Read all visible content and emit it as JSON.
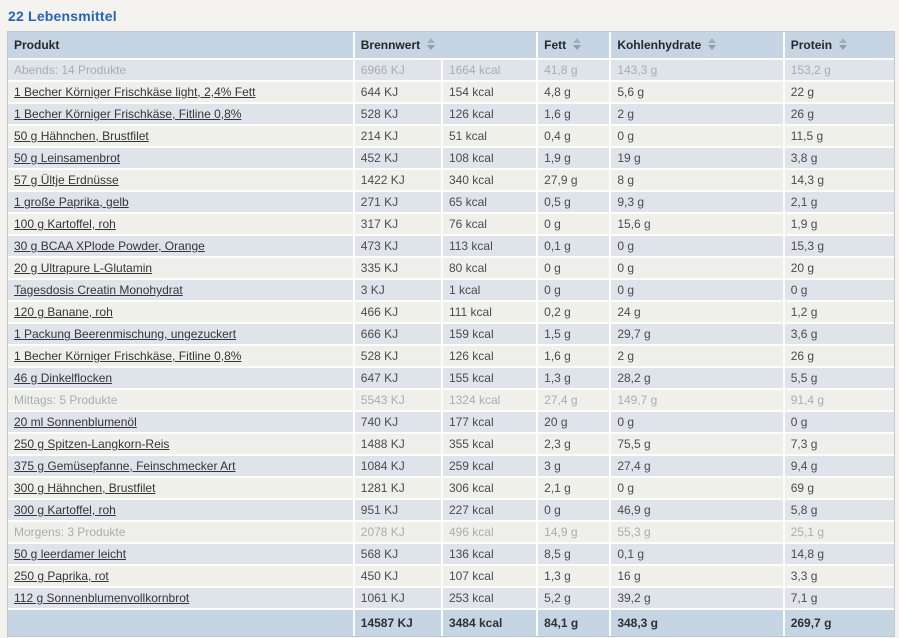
{
  "page": {
    "title": "22 Lebensmittel"
  },
  "table": {
    "headers": {
      "produkt": "Produkt",
      "brennwert": "Brennwert",
      "fett": "Fett",
      "kohlenhydrate": "Kohlenhydrate",
      "protein": "Protein"
    },
    "rows": [
      {
        "type": "group",
        "name": "Abends: 14 Produkte",
        "kj": "6966 KJ",
        "kcal": "1664 kcal",
        "fett": "41,8 g",
        "kohlenhydrate": "143,3 g",
        "protein": "153,2 g"
      },
      {
        "type": "item",
        "name": "1 Becher Körniger Frischkäse light, 2,4% Fett",
        "kj": "644 KJ",
        "kcal": "154 kcal",
        "fett": "4,8 g",
        "kohlenhydrate": "5,6 g",
        "protein": "22 g"
      },
      {
        "type": "item",
        "name": "1 Becher Körniger Frischkäse, Fitline 0,8%",
        "kj": "528 KJ",
        "kcal": "126 kcal",
        "fett": "1,6 g",
        "kohlenhydrate": "2 g",
        "protein": "26 g"
      },
      {
        "type": "item",
        "name": "50 g Hähnchen, Brustfilet",
        "kj": "214 KJ",
        "kcal": "51 kcal",
        "fett": "0,4 g",
        "kohlenhydrate": "0 g",
        "protein": "11,5 g"
      },
      {
        "type": "item",
        "name": "50 g Leinsamenbrot",
        "kj": "452 KJ",
        "kcal": "108 kcal",
        "fett": "1,9 g",
        "kohlenhydrate": "19 g",
        "protein": "3,8 g"
      },
      {
        "type": "item",
        "name": "57 g Ültje Erdnüsse",
        "kj": "1422 KJ",
        "kcal": "340 kcal",
        "fett": "27,9 g",
        "kohlenhydrate": "8 g",
        "protein": "14,3 g"
      },
      {
        "type": "item",
        "name": "1 große Paprika, gelb",
        "kj": "271 KJ",
        "kcal": "65 kcal",
        "fett": "0,5 g",
        "kohlenhydrate": "9,3 g",
        "protein": "2,1 g"
      },
      {
        "type": "item",
        "name": "100 g Kartoffel, roh",
        "kj": "317 KJ",
        "kcal": "76 kcal",
        "fett": "0 g",
        "kohlenhydrate": "15,6 g",
        "protein": "1,9 g"
      },
      {
        "type": "item",
        "name": "30 g BCAA XPlode Powder, Orange",
        "kj": "473 KJ",
        "kcal": "113 kcal",
        "fett": "0,1 g",
        "kohlenhydrate": "0 g",
        "protein": "15,3 g"
      },
      {
        "type": "item",
        "name": "20 g Ultrapure L-Glutamin",
        "kj": "335 KJ",
        "kcal": "80 kcal",
        "fett": "0 g",
        "kohlenhydrate": "0 g",
        "protein": "20 g"
      },
      {
        "type": "item",
        "name": "Tagesdosis Creatin Monohydrat",
        "kj": "3 KJ",
        "kcal": "1 kcal",
        "fett": "0 g",
        "kohlenhydrate": "0 g",
        "protein": "0 g"
      },
      {
        "type": "item",
        "name": "120 g Banane, roh",
        "kj": "466 KJ",
        "kcal": "111 kcal",
        "fett": "0,2 g",
        "kohlenhydrate": "24 g",
        "protein": "1,2 g"
      },
      {
        "type": "item",
        "name": "1 Packung Beerenmischung, ungezuckert",
        "kj": "666 KJ",
        "kcal": "159 kcal",
        "fett": "1,5 g",
        "kohlenhydrate": "29,7 g",
        "protein": "3,6 g"
      },
      {
        "type": "item",
        "name": "1 Becher Körniger Frischkäse, Fitline 0,8%",
        "kj": "528 KJ",
        "kcal": "126 kcal",
        "fett": "1,6 g",
        "kohlenhydrate": "2 g",
        "protein": "26 g"
      },
      {
        "type": "item",
        "name": "46 g Dinkelflocken",
        "kj": "647 KJ",
        "kcal": "155 kcal",
        "fett": "1,3 g",
        "kohlenhydrate": "28,2 g",
        "protein": "5,5 g"
      },
      {
        "type": "group",
        "name": "Mittags: 5 Produkte",
        "kj": "5543 KJ",
        "kcal": "1324 kcal",
        "fett": "27,4 g",
        "kohlenhydrate": "149,7 g",
        "protein": "91,4 g"
      },
      {
        "type": "item",
        "name": "20 ml Sonnenblumenöl",
        "kj": "740 KJ",
        "kcal": "177 kcal",
        "fett": "20 g",
        "kohlenhydrate": "0 g",
        "protein": "0 g"
      },
      {
        "type": "item",
        "name": "250 g Spitzen-Langkorn-Reis",
        "kj": "1488 KJ",
        "kcal": "355 kcal",
        "fett": "2,3 g",
        "kohlenhydrate": "75,5 g",
        "protein": "7,3 g"
      },
      {
        "type": "item",
        "name": "375 g Gemüsepfanne, Feinschmecker Art",
        "kj": "1084 KJ",
        "kcal": "259 kcal",
        "fett": "3 g",
        "kohlenhydrate": "27,4 g",
        "protein": "9,4 g"
      },
      {
        "type": "item",
        "name": "300 g Hähnchen, Brustfilet",
        "kj": "1281 KJ",
        "kcal": "306 kcal",
        "fett": "2,1 g",
        "kohlenhydrate": "0 g",
        "protein": "69 g"
      },
      {
        "type": "item",
        "name": "300 g Kartoffel, roh",
        "kj": "951 KJ",
        "kcal": "227 kcal",
        "fett": "0 g",
        "kohlenhydrate": "46,9 g",
        "protein": "5,8 g"
      },
      {
        "type": "group",
        "name": "Morgens: 3 Produkte",
        "kj": "2078 KJ",
        "kcal": "496 kcal",
        "fett": "14,9 g",
        "kohlenhydrate": "55,3 g",
        "protein": "25,1 g"
      },
      {
        "type": "item",
        "name": "50 g leerdamer leicht",
        "kj": "568 KJ",
        "kcal": "136 kcal",
        "fett": "8,5 g",
        "kohlenhydrate": "0,1 g",
        "protein": "14,8 g"
      },
      {
        "type": "item",
        "name": "250 g Paprika, rot",
        "kj": "450 KJ",
        "kcal": "107 kcal",
        "fett": "1,3 g",
        "kohlenhydrate": "16 g",
        "protein": "3,3 g"
      },
      {
        "type": "item",
        "name": "112 g Sonnenblumenvollkornbrot",
        "kj": "1061 KJ",
        "kcal": "253 kcal",
        "fett": "5,2 g",
        "kohlenhydrate": "39,2 g",
        "protein": "7,1 g"
      }
    ],
    "totals": {
      "kj": "14587 KJ",
      "kcal": "3484 kcal",
      "fett": "84,1 g",
      "kohlenhydrate": "348,3 g",
      "protein": "269,7 g"
    }
  },
  "colors": {
    "title_blue": "#2263c3",
    "header_bg": "#c6d5e3",
    "stripe_blue": "#dee4e9",
    "stripe_offwhite": "#f0f0eb",
    "group_text": "#aaadb0",
    "page_bg": "#f4f3ef"
  }
}
